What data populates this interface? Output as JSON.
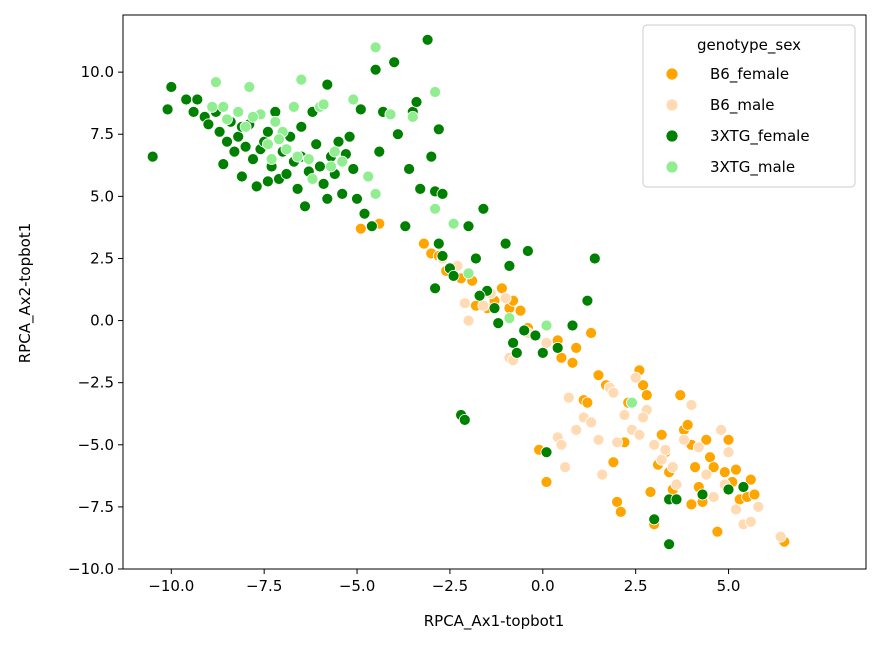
{
  "chart_data": {
    "type": "scatter",
    "xlabel": "RPCA_Ax1-topbot1",
    "ylabel": "RPCA_Ax2-topbot1",
    "xlim": [
      -11.3,
      8.7
    ],
    "ylim": [
      -10.0,
      12.3
    ],
    "xticks": [
      -10.0,
      -7.5,
      -5.0,
      -2.5,
      0.0,
      2.5,
      5.0
    ],
    "xtick_labels": [
      "−10.0",
      "−7.5",
      "−5.0",
      "−2.5",
      "0.0",
      "2.5",
      "5.0"
    ],
    "yticks": [
      -10.0,
      -7.5,
      -5.0,
      -2.5,
      0.0,
      2.5,
      5.0,
      7.5,
      10.0
    ],
    "ytick_labels": [
      "−10.0",
      "−7.5",
      "−5.0",
      "−2.5",
      "0.0",
      "2.5",
      "5.0",
      "7.5",
      "10.0"
    ],
    "grid": false,
    "legend": {
      "title": "genotype_sex",
      "placement": "top-right"
    },
    "series": [
      {
        "name": "B6_female",
        "color": "#ffa500",
        "points": [
          [
            -4.9,
            3.7
          ],
          [
            -4.4,
            3.9
          ],
          [
            -3.2,
            3.1
          ],
          [
            -3.0,
            2.7
          ],
          [
            -2.8,
            2.6
          ],
          [
            -2.6,
            2.0
          ],
          [
            -2.2,
            1.7
          ],
          [
            -1.9,
            1.6
          ],
          [
            -1.8,
            0.6
          ],
          [
            -1.5,
            0.5
          ],
          [
            -1.3,
            0.8
          ],
          [
            -1.1,
            1.3
          ],
          [
            -0.9,
            0.5
          ],
          [
            -0.8,
            0.8
          ],
          [
            -0.6,
            0.4
          ],
          [
            -0.4,
            -0.3
          ],
          [
            -0.1,
            -5.2
          ],
          [
            0.1,
            -6.5
          ],
          [
            0.4,
            -0.8
          ],
          [
            0.9,
            -1.1
          ],
          [
            1.1,
            -3.2
          ],
          [
            1.3,
            -0.5
          ],
          [
            1.5,
            -2.2
          ],
          [
            1.7,
            -2.6
          ],
          [
            1.9,
            -5.7
          ],
          [
            2.0,
            -7.3
          ],
          [
            2.1,
            -7.7
          ],
          [
            2.3,
            -3.3
          ],
          [
            2.6,
            -2.0
          ],
          [
            2.7,
            -2.6
          ],
          [
            2.8,
            -3.0
          ],
          [
            2.9,
            -6.9
          ],
          [
            3.0,
            -8.2
          ],
          [
            3.1,
            -5.8
          ],
          [
            3.3,
            -5.3
          ],
          [
            3.4,
            -6.1
          ],
          [
            3.5,
            -6.8
          ],
          [
            3.7,
            -3.0
          ],
          [
            3.8,
            -4.4
          ],
          [
            3.9,
            -4.2
          ],
          [
            4.0,
            -5.0
          ],
          [
            4.1,
            -5.9
          ],
          [
            4.2,
            -6.7
          ],
          [
            4.3,
            -7.3
          ],
          [
            4.4,
            -4.8
          ],
          [
            4.5,
            -5.5
          ],
          [
            4.6,
            -5.9
          ],
          [
            4.7,
            -8.5
          ],
          [
            4.9,
            -6.1
          ],
          [
            5.0,
            -4.8
          ],
          [
            5.1,
            -6.5
          ],
          [
            5.2,
            -6.0
          ],
          [
            5.3,
            -7.2
          ],
          [
            5.5,
            -7.1
          ],
          [
            5.6,
            -6.4
          ],
          [
            5.7,
            -7.0
          ],
          [
            6.5,
            -8.9
          ],
          [
            0.8,
            -1.7
          ],
          [
            1.2,
            -3.3
          ],
          [
            0.5,
            -1.5
          ],
          [
            3.2,
            -4.6
          ],
          [
            2.2,
            -4.9
          ],
          [
            4.0,
            -7.4
          ]
        ]
      },
      {
        "name": "B6_male",
        "color": "#ffdab3",
        "points": [
          [
            -2.7,
            2.5
          ],
          [
            -2.3,
            2.2
          ],
          [
            -2.1,
            0.7
          ],
          [
            -2.0,
            0.0
          ],
          [
            -1.6,
            0.6
          ],
          [
            -1.4,
            1.1
          ],
          [
            -1.0,
            0.9
          ],
          [
            -0.9,
            -1.5
          ],
          [
            -0.8,
            -1.6
          ],
          [
            -0.4,
            -0.5
          ],
          [
            -0.2,
            -0.6
          ],
          [
            0.1,
            -0.9
          ],
          [
            0.4,
            -4.7
          ],
          [
            0.5,
            -5.0
          ],
          [
            0.6,
            -5.9
          ],
          [
            0.7,
            -3.1
          ],
          [
            0.9,
            -4.4
          ],
          [
            1.1,
            -3.9
          ],
          [
            1.3,
            -4.1
          ],
          [
            1.5,
            -4.8
          ],
          [
            1.6,
            -6.2
          ],
          [
            1.8,
            -2.7
          ],
          [
            2.0,
            -4.9
          ],
          [
            2.2,
            -3.8
          ],
          [
            2.4,
            -4.4
          ],
          [
            2.6,
            -4.6
          ],
          [
            2.8,
            -3.6
          ],
          [
            3.0,
            -5.0
          ],
          [
            3.2,
            -5.6
          ],
          [
            3.5,
            -5.9
          ],
          [
            3.6,
            -6.6
          ],
          [
            3.8,
            -4.8
          ],
          [
            4.0,
            -3.4
          ],
          [
            4.2,
            -5.1
          ],
          [
            4.4,
            -6.2
          ],
          [
            4.6,
            -7.1
          ],
          [
            4.8,
            -4.4
          ],
          [
            5.0,
            -5.3
          ],
          [
            5.2,
            -7.6
          ],
          [
            5.4,
            -8.2
          ],
          [
            5.6,
            -8.1
          ],
          [
            5.8,
            -7.5
          ],
          [
            6.4,
            -8.7
          ],
          [
            2.7,
            -3.9
          ],
          [
            3.3,
            -5.2
          ],
          [
            4.9,
            -6.6
          ],
          [
            1.9,
            -2.9
          ],
          [
            2.5,
            -2.3
          ]
        ]
      },
      {
        "name": "3XTG_female",
        "color": "#008000",
        "points": [
          [
            -10.5,
            6.6
          ],
          [
            -10.0,
            9.4
          ],
          [
            -10.1,
            8.5
          ],
          [
            -9.6,
            8.9
          ],
          [
            -9.3,
            8.9
          ],
          [
            -9.1,
            8.2
          ],
          [
            -9.0,
            7.9
          ],
          [
            -8.8,
            8.4
          ],
          [
            -8.7,
            7.6
          ],
          [
            -8.6,
            6.3
          ],
          [
            -8.5,
            7.2
          ],
          [
            -8.4,
            8.0
          ],
          [
            -8.3,
            6.8
          ],
          [
            -8.2,
            7.4
          ],
          [
            -8.1,
            5.8
          ],
          [
            -8.0,
            7.0
          ],
          [
            -7.9,
            7.9
          ],
          [
            -7.8,
            6.5
          ],
          [
            -7.7,
            5.4
          ],
          [
            -7.6,
            6.9
          ],
          [
            -7.5,
            7.2
          ],
          [
            -7.4,
            5.6
          ],
          [
            -7.3,
            6.2
          ],
          [
            -7.2,
            8.4
          ],
          [
            -7.1,
            5.7
          ],
          [
            -7.0,
            6.8
          ],
          [
            -6.9,
            5.9
          ],
          [
            -6.8,
            7.4
          ],
          [
            -6.7,
            6.4
          ],
          [
            -6.6,
            5.3
          ],
          [
            -6.5,
            7.8
          ],
          [
            -6.4,
            4.6
          ],
          [
            -6.3,
            6.0
          ],
          [
            -6.2,
            8.4
          ],
          [
            -6.1,
            7.1
          ],
          [
            -6.0,
            6.2
          ],
          [
            -5.9,
            5.5
          ],
          [
            -5.8,
            9.5
          ],
          [
            -5.7,
            6.6
          ],
          [
            -5.6,
            5.9
          ],
          [
            -5.5,
            7.2
          ],
          [
            -5.4,
            5.1
          ],
          [
            -5.3,
            6.7
          ],
          [
            -5.2,
            7.4
          ],
          [
            -5.1,
            6.1
          ],
          [
            -5.0,
            4.9
          ],
          [
            -4.9,
            8.5
          ],
          [
            -4.8,
            4.3
          ],
          [
            -4.6,
            3.8
          ],
          [
            -4.5,
            10.1
          ],
          [
            -4.4,
            6.8
          ],
          [
            -4.3,
            8.4
          ],
          [
            -4.1,
            8.3
          ],
          [
            -4.0,
            10.4
          ],
          [
            -3.9,
            7.5
          ],
          [
            -3.7,
            3.8
          ],
          [
            -3.6,
            6.1
          ],
          [
            -3.5,
            8.4
          ],
          [
            -3.4,
            8.8
          ],
          [
            -3.3,
            5.3
          ],
          [
            -3.1,
            11.3
          ],
          [
            -3.0,
            6.6
          ],
          [
            -2.9,
            5.2
          ],
          [
            -2.8,
            7.7
          ],
          [
            -2.8,
            3.1
          ],
          [
            -2.7,
            2.6
          ],
          [
            -2.7,
            5.1
          ],
          [
            -2.5,
            2.1
          ],
          [
            -2.4,
            1.8
          ],
          [
            -2.2,
            -3.8
          ],
          [
            -2.1,
            -4.0
          ],
          [
            -2.0,
            3.8
          ],
          [
            -1.8,
            2.5
          ],
          [
            -1.6,
            4.5
          ],
          [
            -1.5,
            1.2
          ],
          [
            -1.3,
            0.5
          ],
          [
            -1.2,
            -0.1
          ],
          [
            -1.0,
            3.1
          ],
          [
            -0.9,
            2.2
          ],
          [
            -0.8,
            -0.9
          ],
          [
            -0.7,
            -1.3
          ],
          [
            -0.5,
            -0.4
          ],
          [
            -0.4,
            2.8
          ],
          [
            -0.2,
            -0.6
          ],
          [
            0.0,
            -1.3
          ],
          [
            0.1,
            -5.3
          ],
          [
            0.4,
            -1.1
          ],
          [
            0.8,
            -0.2
          ],
          [
            1.2,
            0.8
          ],
          [
            1.4,
            2.5
          ],
          [
            3.0,
            -8.0
          ],
          [
            3.4,
            -9.0
          ],
          [
            3.4,
            -7.2
          ],
          [
            3.6,
            -7.2
          ],
          [
            4.3,
            -7.0
          ],
          [
            5.0,
            -6.8
          ],
          [
            5.4,
            -6.7
          ],
          [
            -5.8,
            4.9
          ],
          [
            -6.5,
            6.6
          ],
          [
            -7.4,
            7.6
          ],
          [
            -8.1,
            7.8
          ],
          [
            -9.4,
            8.4
          ],
          [
            -2.9,
            1.3
          ],
          [
            -1.7,
            1.0
          ]
        ]
      },
      {
        "name": "3XTG_male",
        "color": "#90ee90",
        "points": [
          [
            -8.8,
            9.6
          ],
          [
            -8.9,
            8.6
          ],
          [
            -8.5,
            8.1
          ],
          [
            -8.2,
            8.4
          ],
          [
            -8.0,
            7.8
          ],
          [
            -7.9,
            9.4
          ],
          [
            -7.6,
            8.3
          ],
          [
            -7.4,
            7.1
          ],
          [
            -7.3,
            6.5
          ],
          [
            -7.2,
            8.0
          ],
          [
            -7.0,
            7.6
          ],
          [
            -6.9,
            6.9
          ],
          [
            -6.7,
            8.6
          ],
          [
            -6.6,
            6.6
          ],
          [
            -6.5,
            9.7
          ],
          [
            -6.3,
            6.5
          ],
          [
            -6.2,
            5.7
          ],
          [
            -6.0,
            8.6
          ],
          [
            -5.9,
            8.7
          ],
          [
            -5.7,
            6.2
          ],
          [
            -5.6,
            6.8
          ],
          [
            -5.4,
            6.4
          ],
          [
            -5.1,
            8.9
          ],
          [
            -4.7,
            5.8
          ],
          [
            -4.5,
            5.1
          ],
          [
            -4.5,
            11.0
          ],
          [
            -4.1,
            8.3
          ],
          [
            -3.5,
            8.2
          ],
          [
            -2.9,
            9.2
          ],
          [
            -2.9,
            4.5
          ],
          [
            -2.4,
            3.9
          ],
          [
            -2.0,
            1.9
          ],
          [
            -0.9,
            0.1
          ],
          [
            0.1,
            -0.2
          ],
          [
            2.4,
            -3.3
          ],
          [
            -7.8,
            8.2
          ],
          [
            -8.6,
            8.6
          ],
          [
            -7.1,
            7.3
          ]
        ]
      }
    ]
  }
}
